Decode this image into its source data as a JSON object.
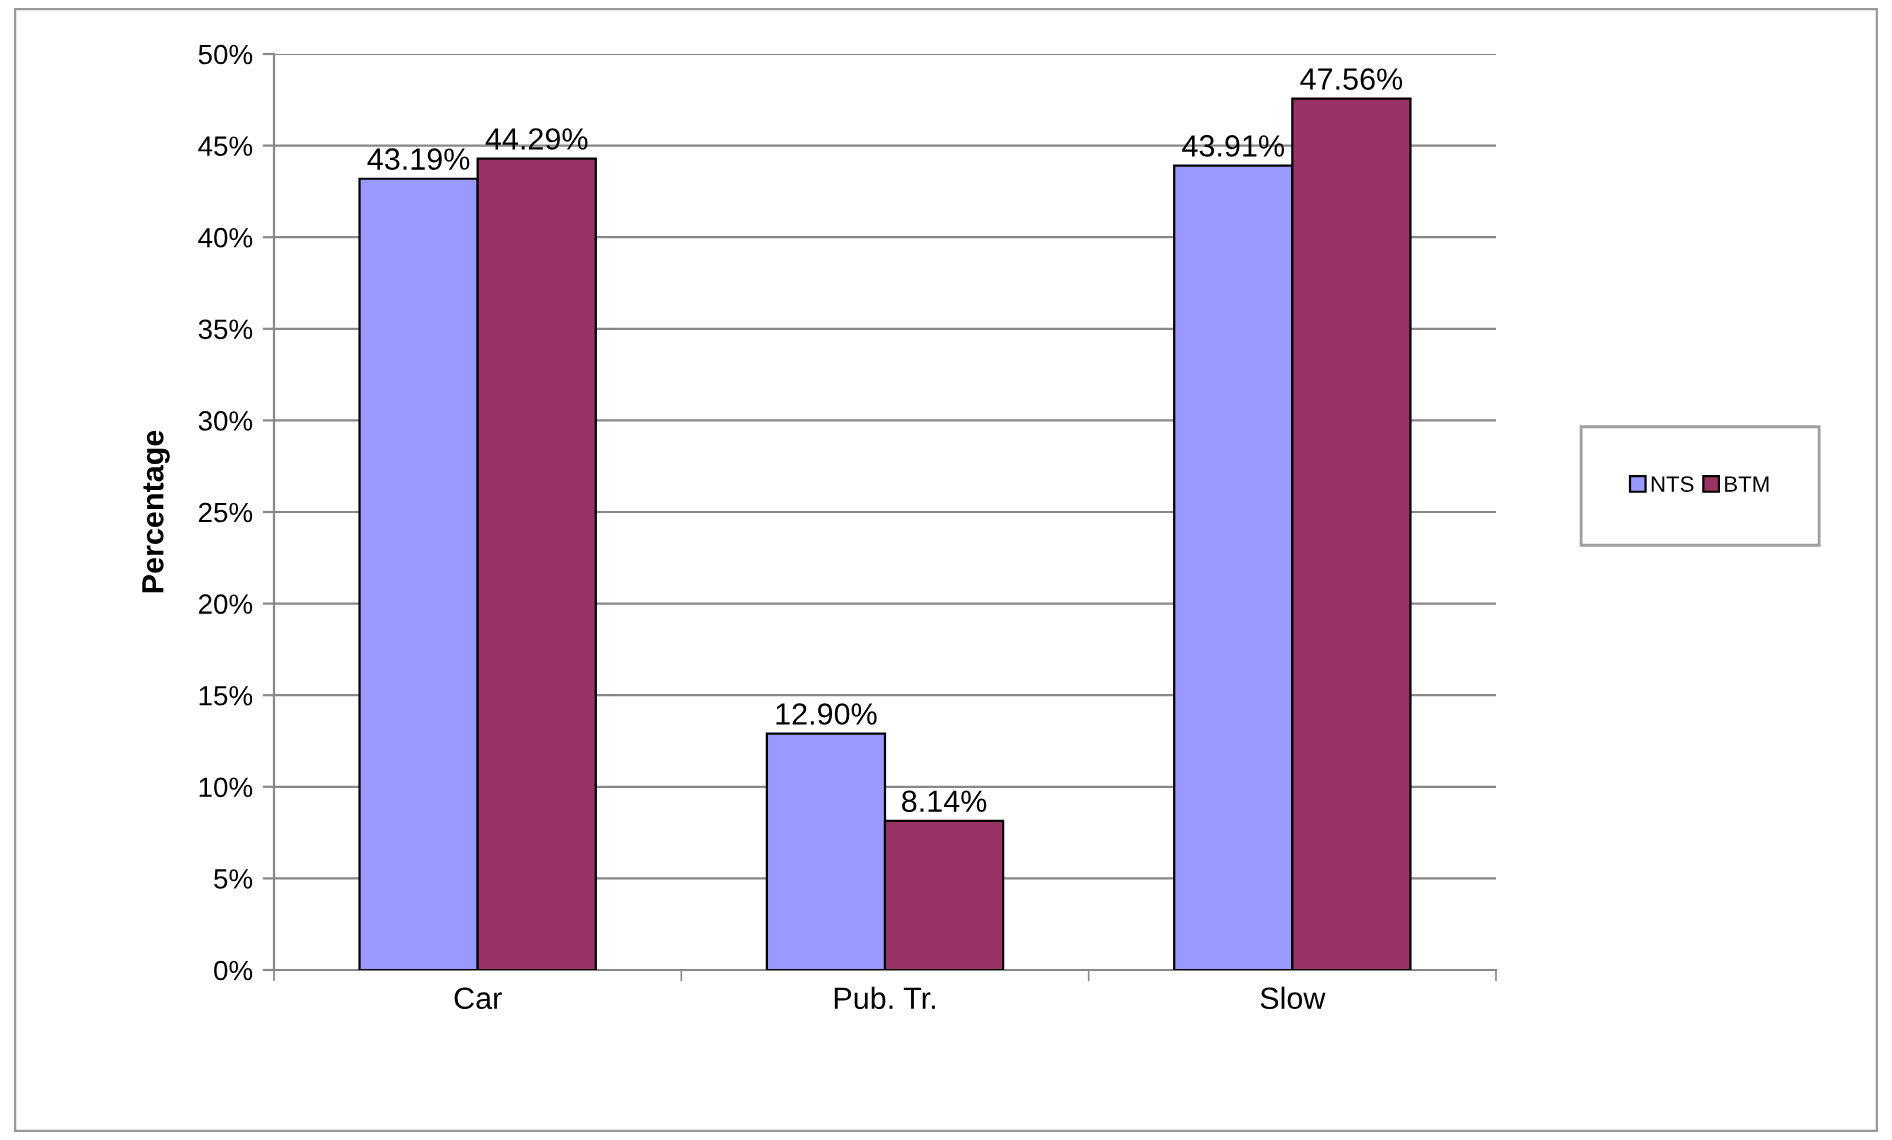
{
  "chart_data": {
    "type": "bar",
    "ylabel": "Percentage",
    "categories": [
      "Car",
      "Pub. Tr.",
      "Slow"
    ],
    "series": [
      {
        "name": "NTS",
        "color": "#9999ff",
        "values": [
          43.19,
          12.9,
          43.91
        ],
        "value_labels": [
          "43.19%",
          "12.90%",
          "43.91%"
        ]
      },
      {
        "name": "BTM",
        "color": "#993366",
        "values": [
          44.29,
          8.14,
          47.56
        ],
        "value_labels": [
          "44.29%",
          "8.14%",
          "47.56%"
        ]
      }
    ],
    "ylim": [
      0,
      50
    ],
    "yticks": [
      {
        "value": 0,
        "label": "0%"
      },
      {
        "value": 5,
        "label": "5%"
      },
      {
        "value": 10,
        "label": "10%"
      },
      {
        "value": 15,
        "label": "15%"
      },
      {
        "value": 20,
        "label": "20%"
      },
      {
        "value": 25,
        "label": "25%"
      },
      {
        "value": 30,
        "label": "30%"
      },
      {
        "value": 35,
        "label": "35%"
      },
      {
        "value": 40,
        "label": "40%"
      },
      {
        "value": 45,
        "label": "45%"
      },
      {
        "value": 50,
        "label": "50%"
      }
    ],
    "grid": "y",
    "legend": "right"
  }
}
